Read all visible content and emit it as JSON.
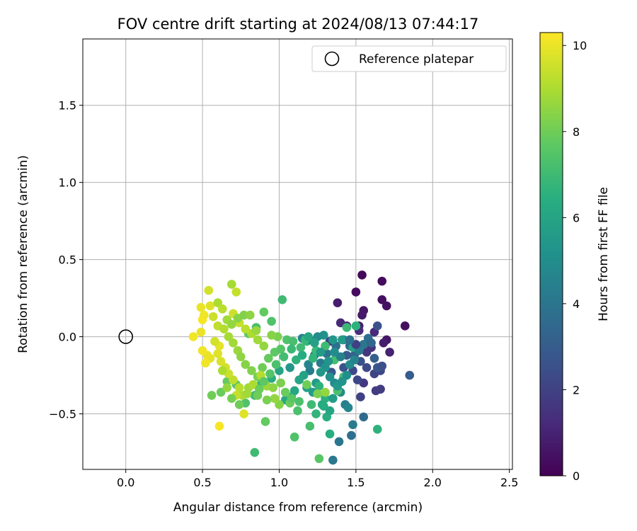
{
  "chart_data": {
    "type": "scatter",
    "title": "FOV centre drift starting at 2024/08/13 07:44:17",
    "xlabel": "Angular distance from reference (arcmin)",
    "ylabel": "Rotation from reference (arcmin)",
    "xlim": [
      -0.28,
      2.52
    ],
    "ylim": [
      -0.86,
      1.93
    ],
    "xticks": [
      "0.0",
      "0.5",
      "1.0",
      "1.5",
      "2.0",
      "2.5"
    ],
    "xtick_values": [
      0,
      0.5,
      1.0,
      1.5,
      2.0,
      2.5
    ],
    "yticks": [
      "−0.5",
      "0.0",
      "0.5",
      "1.0",
      "1.5"
    ],
    "ytick_values": [
      -0.5,
      0,
      0.5,
      1.0,
      1.5
    ],
    "grid": true,
    "legend": {
      "position": "top-right",
      "label": "Reference platepar",
      "marker": "open-circle"
    },
    "reference_point": {
      "x": 0.0,
      "y": 0.0
    },
    "colorbar": {
      "label": "Hours from first FF file",
      "range": [
        0,
        10.3
      ],
      "ticks": [
        "0",
        "2",
        "4",
        "6",
        "8",
        "10"
      ],
      "tick_values": [
        0,
        2,
        4,
        6,
        8,
        10
      ],
      "colormap": "viridis"
    },
    "series": [
      {
        "points": [
          [
            1.54,
            0.4,
            0.2
          ],
          [
            1.5,
            0.29,
            0.3
          ],
          [
            1.67,
            0.36,
            0.3
          ],
          [
            1.67,
            0.24,
            0.4
          ],
          [
            1.7,
            0.2,
            0.5
          ],
          [
            1.55,
            0.17,
            0.6
          ],
          [
            1.54,
            0.14,
            0.7
          ],
          [
            1.38,
            0.22,
            0.8
          ],
          [
            1.82,
            0.07,
            0.4
          ],
          [
            1.7,
            -0.02,
            0.6
          ],
          [
            1.68,
            -0.04,
            0.8
          ],
          [
            1.72,
            -0.1,
            1.0
          ],
          [
            1.62,
            0.03,
            1.2
          ],
          [
            1.52,
            0.07,
            0.9
          ],
          [
            1.44,
            0.07,
            1.0
          ],
          [
            1.4,
            0.09,
            1.2
          ],
          [
            1.52,
            0.04,
            1.3
          ],
          [
            1.6,
            -0.07,
            1.5
          ],
          [
            1.57,
            -0.1,
            1.6
          ],
          [
            1.66,
            -0.34,
            1.8
          ],
          [
            1.63,
            -0.35,
            1.8
          ],
          [
            1.55,
            -0.3,
            1.7
          ],
          [
            1.53,
            -0.39,
            2.0
          ],
          [
            1.62,
            -0.24,
            2.1
          ],
          [
            1.66,
            -0.22,
            2.2
          ],
          [
            1.48,
            -0.22,
            2.3
          ],
          [
            1.51,
            -0.28,
            2.2
          ],
          [
            1.33,
            -0.03,
            2.0
          ],
          [
            1.85,
            -0.25,
            3.0
          ],
          [
            1.64,
            0.07,
            2.6
          ],
          [
            1.53,
            -0.16,
            2.5
          ],
          [
            1.42,
            -0.2,
            2.6
          ],
          [
            1.34,
            -0.23,
            2.8
          ],
          [
            1.44,
            -0.12,
            3.0
          ],
          [
            1.49,
            -0.12,
            3.2
          ],
          [
            1.46,
            -0.06,
            3.4
          ],
          [
            1.42,
            -0.02,
            3.6
          ],
          [
            1.37,
            -0.06,
            3.8
          ],
          [
            1.31,
            -0.11,
            4.0
          ],
          [
            1.27,
            -0.17,
            4.2
          ],
          [
            1.2,
            -0.22,
            4.3
          ],
          [
            1.23,
            -0.12,
            4.4
          ],
          [
            1.19,
            -0.18,
            4.6
          ],
          [
            1.55,
            -0.52,
            3.6
          ],
          [
            1.47,
            -0.64,
            3.8
          ],
          [
            1.39,
            -0.68,
            4.0
          ],
          [
            1.35,
            -0.8,
            4.1
          ],
          [
            1.48,
            -0.57,
            4.2
          ],
          [
            1.43,
            -0.44,
            4.4
          ],
          [
            1.45,
            -0.46,
            4.7
          ],
          [
            1.4,
            -0.36,
            4.9
          ],
          [
            1.36,
            -0.3,
            5.0
          ],
          [
            1.33,
            -0.26,
            5.1
          ],
          [
            1.3,
            -0.2,
            5.2
          ],
          [
            1.27,
            -0.23,
            5.4
          ],
          [
            1.24,
            -0.3,
            5.5
          ],
          [
            1.22,
            -0.36,
            5.6
          ],
          [
            1.18,
            -0.33,
            5.8
          ],
          [
            1.16,
            -0.25,
            5.9
          ],
          [
            1.13,
            -0.28,
            6.0
          ],
          [
            1.1,
            -0.35,
            6.1
          ],
          [
            1.08,
            -0.39,
            6.2
          ],
          [
            1.04,
            -0.41,
            6.2
          ],
          [
            1.28,
            -0.44,
            6.3
          ],
          [
            1.31,
            -0.52,
            6.4
          ],
          [
            1.33,
            -0.63,
            6.4
          ],
          [
            1.3,
            -0.4,
            6.5
          ],
          [
            1.26,
            -0.32,
            6.6
          ],
          [
            1.22,
            -0.14,
            6.7
          ],
          [
            1.18,
            -0.03,
            6.8
          ],
          [
            1.24,
            -0.09,
            6.9
          ],
          [
            1.3,
            -0.06,
            7.0
          ],
          [
            1.36,
            -0.15,
            7.1
          ],
          [
            1.42,
            -0.26,
            7.2
          ],
          [
            1.38,
            -0.35,
            7.3
          ],
          [
            1.44,
            0.06,
            6.9
          ],
          [
            1.5,
            0.07,
            6.6
          ],
          [
            1.48,
            -0.07,
            5.8
          ],
          [
            1.41,
            -0.02,
            5.6
          ],
          [
            1.35,
            -0.02,
            5.4
          ],
          [
            1.29,
            0.01,
            5.2
          ],
          [
            1.25,
            0.0,
            5.0
          ],
          [
            1.2,
            -0.02,
            4.8
          ],
          [
            1.15,
            -0.01,
            4.6
          ],
          [
            1.07,
            -0.2,
            5.4
          ],
          [
            1.0,
            -0.22,
            6.0
          ],
          [
            0.95,
            -0.27,
            6.4
          ],
          [
            0.88,
            -0.31,
            6.8
          ],
          [
            0.84,
            -0.38,
            7.1
          ],
          [
            0.78,
            -0.43,
            7.4
          ],
          [
            0.72,
            -0.31,
            7.6
          ],
          [
            0.66,
            -0.29,
            7.8
          ],
          [
            0.62,
            -0.36,
            7.9
          ],
          [
            0.56,
            -0.38,
            8.0
          ],
          [
            1.02,
            0.24,
            7.0
          ],
          [
            0.95,
            0.1,
            7.4
          ],
          [
            0.9,
            0.16,
            7.8
          ],
          [
            0.85,
            0.06,
            7.2
          ],
          [
            0.8,
            0.02,
            7.6
          ],
          [
            0.84,
            -0.75,
            7.0
          ],
          [
            0.91,
            -0.55,
            7.8
          ],
          [
            1.1,
            -0.65,
            7.4
          ],
          [
            1.2,
            -0.58,
            7.2
          ],
          [
            1.26,
            -0.79,
            7.6
          ],
          [
            1.64,
            -0.6,
            6.6
          ],
          [
            1.25,
            -0.37,
            8.2
          ],
          [
            1.3,
            -0.36,
            8.6
          ],
          [
            1.18,
            -0.31,
            8.0
          ],
          [
            1.12,
            -0.48,
            7.3
          ],
          [
            1.07,
            -0.43,
            7.9
          ],
          [
            1.0,
            -0.44,
            8.4
          ],
          [
            0.97,
            -0.4,
            8.6
          ],
          [
            0.92,
            -0.41,
            8.2
          ],
          [
            0.86,
            -0.38,
            8.0
          ],
          [
            0.8,
            -0.33,
            8.8
          ],
          [
            0.76,
            -0.38,
            9.0
          ],
          [
            0.74,
            -0.33,
            9.2
          ],
          [
            0.72,
            -0.38,
            9.4
          ],
          [
            0.7,
            -0.28,
            9.3
          ],
          [
            0.67,
            -0.24,
            9.5
          ],
          [
            0.65,
            -0.2,
            9.6
          ],
          [
            0.62,
            -0.16,
            9.7
          ],
          [
            0.6,
            -0.11,
            9.8
          ],
          [
            0.55,
            -0.14,
            9.9
          ],
          [
            0.53,
            -0.12,
            10.0
          ],
          [
            0.5,
            -0.09,
            10.1
          ],
          [
            0.52,
            -0.17,
            10.1
          ],
          [
            0.61,
            -0.58,
            10.2
          ],
          [
            0.77,
            -0.5,
            9.8
          ],
          [
            0.44,
            0.0,
            10.1
          ],
          [
            0.49,
            0.03,
            10.0
          ],
          [
            0.5,
            0.11,
            10.2
          ],
          [
            0.51,
            0.14,
            10.1
          ],
          [
            0.49,
            0.19,
            10.0
          ],
          [
            0.55,
            0.2,
            9.8
          ],
          [
            0.57,
            0.13,
            9.5
          ],
          [
            0.6,
            0.07,
            9.3
          ],
          [
            0.64,
            0.05,
            9.1
          ],
          [
            0.67,
            0.0,
            8.9
          ],
          [
            0.7,
            -0.04,
            8.8
          ],
          [
            0.73,
            -0.09,
            8.7
          ],
          [
            0.75,
            -0.13,
            8.5
          ],
          [
            0.78,
            -0.18,
            8.4
          ],
          [
            0.82,
            -0.22,
            8.3
          ],
          [
            0.86,
            -0.26,
            8.1
          ],
          [
            0.89,
            -0.2,
            8.0
          ],
          [
            0.93,
            -0.14,
            7.8
          ],
          [
            0.97,
            -0.1,
            7.7
          ],
          [
            1.01,
            -0.08,
            7.5
          ],
          [
            1.05,
            -0.02,
            7.4
          ],
          [
            1.09,
            -0.03,
            7.2
          ],
          [
            1.14,
            -0.07,
            7.0
          ],
          [
            1.17,
            -0.02,
            6.8
          ],
          [
            0.99,
            0.0,
            8.2
          ],
          [
            0.95,
            0.01,
            8.4
          ],
          [
            0.9,
            -0.06,
            8.6
          ],
          [
            0.86,
            -0.02,
            8.8
          ],
          [
            0.82,
            0.02,
            9.0
          ],
          [
            0.78,
            0.05,
            9.2
          ],
          [
            0.74,
            0.09,
            9.4
          ],
          [
            0.7,
            0.15,
            9.5
          ],
          [
            0.69,
            0.34,
            8.9
          ],
          [
            0.72,
            0.29,
            9.4
          ],
          [
            0.54,
            0.3,
            9.6
          ],
          [
            0.6,
            0.22,
            9.0
          ],
          [
            0.63,
            0.18,
            9.2
          ],
          [
            0.66,
            0.11,
            8.8
          ],
          [
            0.69,
            0.08,
            8.6
          ],
          [
            0.73,
            0.12,
            8.4
          ],
          [
            0.77,
            0.14,
            8.3
          ],
          [
            0.81,
            0.14,
            8.5
          ],
          [
            0.85,
            0.04,
            8.7
          ],
          [
            0.61,
            -0.06,
            9.9
          ],
          [
            0.58,
            -0.03,
            9.6
          ],
          [
            0.63,
            -0.22,
            9.0
          ],
          [
            0.66,
            -0.33,
            8.6
          ],
          [
            0.69,
            -0.4,
            8.1
          ],
          [
            0.74,
            -0.44,
            8.0
          ],
          [
            0.79,
            -0.37,
            8.8
          ],
          [
            0.83,
            -0.31,
            9.0
          ],
          [
            0.88,
            -0.25,
            9.1
          ],
          [
            0.92,
            -0.32,
            8.7
          ],
          [
            0.96,
            -0.33,
            8.5
          ],
          [
            1.01,
            -0.3,
            8.2
          ],
          [
            1.04,
            -0.36,
            7.9
          ],
          [
            1.08,
            -0.4,
            7.6
          ],
          [
            1.13,
            -0.42,
            7.3
          ],
          [
            1.21,
            -0.44,
            7.0
          ],
          [
            1.24,
            -0.5,
            6.7
          ],
          [
            1.29,
            -0.45,
            6.3
          ],
          [
            1.33,
            -0.48,
            6.0
          ],
          [
            1.35,
            -0.4,
            5.7
          ],
          [
            1.38,
            -0.32,
            5.5
          ],
          [
            1.41,
            -0.29,
            5.3
          ],
          [
            1.44,
            -0.25,
            5.1
          ],
          [
            1.46,
            -0.18,
            4.9
          ],
          [
            1.49,
            -0.15,
            4.6
          ],
          [
            1.52,
            -0.09,
            4.3
          ],
          [
            1.55,
            -0.05,
            4.0
          ],
          [
            1.58,
            -0.01,
            3.7
          ],
          [
            1.6,
            -0.04,
            3.4
          ],
          [
            1.62,
            -0.14,
            3.1
          ],
          [
            1.64,
            -0.2,
            2.8
          ],
          [
            1.67,
            -0.19,
            2.5
          ],
          [
            1.57,
            -0.2,
            2.3
          ],
          [
            1.5,
            -0.05,
            2.0
          ],
          [
            1.46,
            -0.02,
            3.8
          ],
          [
            1.4,
            -0.13,
            4.5
          ],
          [
            1.36,
            -0.1,
            5.0
          ],
          [
            1.32,
            -0.16,
            5.3
          ],
          [
            1.27,
            -0.1,
            5.6
          ],
          [
            1.23,
            -0.04,
            5.9
          ],
          [
            1.19,
            0.0,
            6.1
          ],
          [
            1.15,
            -0.12,
            6.3
          ],
          [
            1.11,
            -0.15,
            6.6
          ],
          [
            1.08,
            -0.08,
            6.9
          ],
          [
            1.03,
            -0.13,
            7.1
          ],
          [
            0.98,
            -0.18,
            7.3
          ],
          [
            0.94,
            -0.24,
            7.5
          ],
          [
            0.9,
            -0.29,
            7.7
          ],
          [
            0.87,
            -0.34,
            7.9
          ]
        ]
      }
    ]
  }
}
